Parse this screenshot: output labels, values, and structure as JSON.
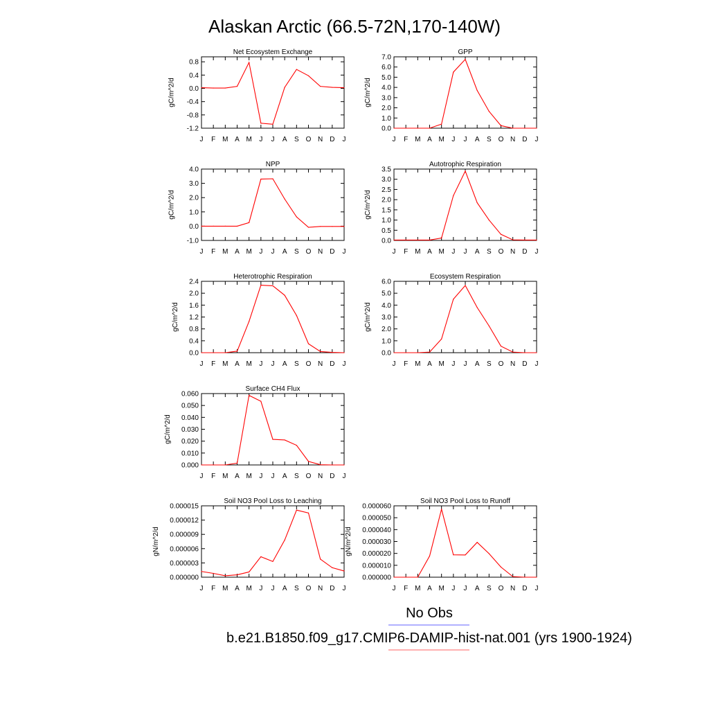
{
  "figure": {
    "title": "Alaskan Arctic (66.5-72N,170-140W)",
    "legend": [
      {
        "label": "No Obs",
        "color": "#8080ff"
      },
      {
        "label": "b.e21.B1850.f09_g17.CMIP6-DAMIP-hist-nat.001 (yrs 1900-1924)",
        "color": "#ff8080"
      }
    ],
    "series_color": "#ff0000"
  },
  "chart_data": [
    {
      "type": "line",
      "title": "Net Ecosystem Exchange",
      "ylabel": "gC/m^2/d",
      "categories": [
        "J",
        "F",
        "M",
        "A",
        "M",
        "J",
        "J",
        "A",
        "S",
        "O",
        "N",
        "D",
        "J"
      ],
      "yticks": [
        "0.8",
        "0.4",
        "0.0",
        "-0.4",
        "-0.8",
        "-1.2"
      ],
      "ylim": [
        -1.2,
        0.95
      ],
      "series": [
        {
          "values": [
            0.02,
            0.01,
            0.01,
            0.06,
            0.78,
            -1.05,
            -1.08,
            0.03,
            0.57,
            0.38,
            0.06,
            0.03,
            0.02
          ]
        }
      ]
    },
    {
      "type": "line",
      "title": "GPP",
      "ylabel": "gC/m^2/d",
      "categories": [
        "J",
        "F",
        "M",
        "A",
        "M",
        "J",
        "J",
        "A",
        "S",
        "O",
        "N",
        "D",
        "J"
      ],
      "yticks": [
        "7.0",
        "6.0",
        "5.0",
        "4.0",
        "3.0",
        "2.0",
        "1.0",
        "0.0"
      ],
      "ylim": [
        0,
        7
      ],
      "series": [
        {
          "values": [
            0.0,
            0.0,
            0.0,
            0.0,
            0.4,
            5.5,
            6.75,
            3.7,
            1.65,
            0.25,
            0.0,
            0.0,
            0.0
          ]
        }
      ]
    },
    {
      "type": "line",
      "title": "NPP",
      "ylabel": "gC/m^2/d",
      "categories": [
        "J",
        "F",
        "M",
        "A",
        "M",
        "J",
        "J",
        "A",
        "S",
        "O",
        "N",
        "D",
        "J"
      ],
      "yticks": [
        "4.0",
        "3.0",
        "2.0",
        "1.0",
        "0.0",
        "-1.0"
      ],
      "ylim": [
        -1,
        4
      ],
      "series": [
        {
          "values": [
            0.0,
            0.0,
            0.0,
            0.0,
            0.25,
            3.3,
            3.32,
            1.9,
            0.65,
            -0.08,
            -0.02,
            -0.02,
            -0.02
          ]
        }
      ]
    },
    {
      "type": "line",
      "title": "Autotrophic Respiration",
      "ylabel": "gC/m^2/d",
      "categories": [
        "J",
        "F",
        "M",
        "A",
        "M",
        "J",
        "J",
        "A",
        "S",
        "O",
        "N",
        "D",
        "J"
      ],
      "yticks": [
        "3.5",
        "3.0",
        "2.5",
        "2.0",
        "1.5",
        "1.0",
        "0.5",
        "0.0"
      ],
      "ylim": [
        0,
        3.5
      ],
      "series": [
        {
          "values": [
            0.02,
            0.02,
            0.02,
            0.02,
            0.12,
            2.2,
            3.4,
            1.85,
            1.0,
            0.3,
            0.03,
            0.02,
            0.02
          ]
        }
      ]
    },
    {
      "type": "line",
      "title": "Heterotrophic Respiration",
      "ylabel": "gC/m^2/d",
      "categories": [
        "J",
        "F",
        "M",
        "A",
        "M",
        "J",
        "J",
        "A",
        "S",
        "O",
        "N",
        "D",
        "J"
      ],
      "yticks": [
        "2.4",
        "2.0",
        "1.6",
        "1.2",
        "0.8",
        "0.4",
        "0.0"
      ],
      "ylim": [
        0,
        2.4
      ],
      "series": [
        {
          "values": [
            0.0,
            0.0,
            0.0,
            0.05,
            1.05,
            2.27,
            2.25,
            1.93,
            1.25,
            0.3,
            0.04,
            0.01,
            0.0
          ]
        }
      ]
    },
    {
      "type": "line",
      "title": "Ecosystem Respiration",
      "ylabel": "gC/m^2/d",
      "categories": [
        "J",
        "F",
        "M",
        "A",
        "M",
        "J",
        "J",
        "A",
        "S",
        "O",
        "N",
        "D",
        "J"
      ],
      "yticks": [
        "6.0",
        "5.0",
        "4.0",
        "3.0",
        "2.0",
        "1.0",
        "0.0"
      ],
      "ylim": [
        0,
        6
      ],
      "series": [
        {
          "values": [
            0.0,
            0.0,
            0.0,
            0.05,
            1.15,
            4.5,
            5.65,
            3.8,
            2.25,
            0.55,
            0.05,
            0.0,
            0.0
          ]
        }
      ]
    },
    {
      "type": "line",
      "title": "Surface CH4 Flux",
      "ylabel": "gC/m^2/d",
      "categories": [
        "J",
        "F",
        "M",
        "A",
        "M",
        "J",
        "J",
        "A",
        "S",
        "O",
        "N",
        "D",
        "J"
      ],
      "yticks": [
        "0.060",
        "0.050",
        "0.040",
        "0.030",
        "0.020",
        "0.010",
        "0.000"
      ],
      "ylim": [
        0,
        0.06
      ],
      "series": [
        {
          "values": [
            0.0,
            0.0,
            0.0,
            0.0015,
            0.0585,
            0.0535,
            0.0215,
            0.021,
            0.0165,
            0.003,
            0.0002,
            0.0,
            0.0
          ]
        }
      ]
    },
    {
      "type": "line",
      "title": "Soil NO3 Pool Loss to Leaching",
      "ylabel": "gN/m^2/d",
      "categories": [
        "J",
        "F",
        "M",
        "A",
        "M",
        "J",
        "J",
        "A",
        "S",
        "O",
        "N",
        "D",
        "J"
      ],
      "yticks": [
        "0.000015",
        "0.000012",
        "0.000009",
        "0.000006",
        "0.000003",
        "0.000000"
      ],
      "ylim": [
        0,
        1.5e-05
      ],
      "series": [
        {
          "values": [
            1.2e-06,
            8e-07,
            3e-07,
            5e-07,
            1.1e-06,
            4.3e-06,
            3.3e-06,
            7.8e-06,
            1.41e-05,
            1.35e-05,
            3.8e-06,
            2e-06,
            1.3e-06
          ]
        }
      ]
    },
    {
      "type": "line",
      "title": "Soil NO3 Pool Loss to Runoff",
      "ylabel": "gN/m^2/d",
      "categories": [
        "J",
        "F",
        "M",
        "A",
        "M",
        "J",
        "J",
        "A",
        "S",
        "O",
        "N",
        "D",
        "J"
      ],
      "yticks": [
        "0.000060",
        "0.000050",
        "0.000040",
        "0.000030",
        "0.000020",
        "0.000010",
        "0.000000"
      ],
      "ylim": [
        0,
        6e-05
      ],
      "series": [
        {
          "values": [
            0.0,
            0.0,
            0.0,
            1.78e-05,
            5.72e-05,
            1.88e-05,
            1.87e-05,
            2.93e-05,
            1.98e-05,
            8.5e-06,
            5e-07,
            0.0,
            0.0
          ]
        }
      ]
    }
  ]
}
